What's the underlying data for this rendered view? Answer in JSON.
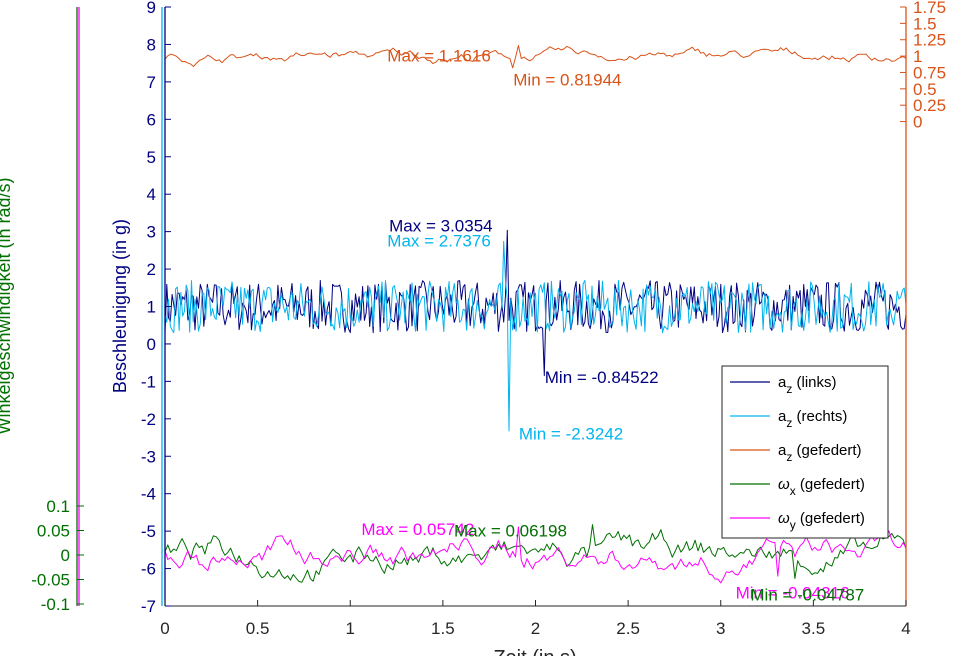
{
  "chart_data": {
    "type": "line",
    "xlabel": "Zeit (in s)",
    "ylabel_left": "Beschleunigung (in g)",
    "ylabel_omega": "Winkelgeschwindigkeit (in rad/s)",
    "xlim": [
      0,
      4
    ],
    "ylim_left": [
      -7,
      9
    ],
    "ylim_right": [
      -7.4,
      1.75
    ],
    "ylim_omega": [
      -0.1,
      0.1
    ],
    "x_ticks": [
      "0",
      "0.5",
      "1",
      "1.5",
      "2",
      "2.5",
      "3",
      "3.5",
      "4"
    ],
    "y_left_ticks": [
      "9",
      "8",
      "7",
      "6",
      "5",
      "4",
      "3",
      "2",
      "1",
      "0",
      "-1",
      "-2",
      "-3",
      "-4",
      "-5",
      "-6",
      "-7"
    ],
    "y_right_ticks": [
      "1.75",
      "1.5",
      "1.25",
      "1",
      "0.75",
      "0.5",
      "0.25",
      "0"
    ],
    "y_omega_ticks": [
      "0.1",
      "0.05",
      "0",
      "-0.05",
      "-0.1"
    ],
    "series": [
      {
        "name": "a_z (links)",
        "base": "a",
        "sub": "z",
        "suffix": " (links)",
        "color": "#000080",
        "axis": "left",
        "keypoints": [
          [
            0,
            1.0
          ],
          [
            1.85,
            3.0354
          ],
          [
            2.05,
            -0.84522
          ],
          [
            4,
            1.0
          ]
        ]
      },
      {
        "name": "a_z (rechts)",
        "base": "a",
        "sub": "z",
        "suffix": " (rechts)",
        "color": "#00b4ee",
        "axis": "left",
        "keypoints": [
          [
            0,
            1.0
          ],
          [
            1.83,
            2.7376
          ],
          [
            1.86,
            -2.3242
          ],
          [
            4,
            1.0
          ]
        ]
      },
      {
        "name": "a_z (gefedert)",
        "base": "a",
        "sub": "z",
        "suffix": " (gefedert)",
        "color": "#d95319",
        "axis": "right",
        "keypoints": [
          [
            0,
            1.0
          ],
          [
            1.9,
            1.1616
          ],
          [
            1.88,
            0.81944
          ],
          [
            4,
            1.0
          ]
        ]
      },
      {
        "name": "ω_x (gefedert)",
        "base": "ω",
        "sub": "x",
        "suffix": " (gefedert)",
        "color": "#007000",
        "axis": "omega",
        "keypoints": [
          [
            0,
            0.0
          ],
          [
            2.3,
            0.06198
          ],
          [
            3.4,
            -0.04787
          ],
          [
            4,
            0.0
          ]
        ]
      },
      {
        "name": "ω_y (gefedert)",
        "base": "ω",
        "sub": "y",
        "suffix": " (gefedert)",
        "color": "#ff00ff",
        "axis": "omega",
        "keypoints": [
          [
            0,
            0.0
          ],
          [
            1.9,
            0.05742
          ],
          [
            3.3,
            -0.04316
          ],
          [
            4,
            0.0
          ]
        ]
      }
    ],
    "annotations": [
      {
        "text": "Max = 3.0354",
        "color": "#000080",
        "x": 1.21,
        "y": 3.0
      },
      {
        "text": "Max = 2.7376",
        "color": "#00b4ee",
        "x": 1.2,
        "y": 2.6
      },
      {
        "text": "Min = -0.84522",
        "color": "#000080",
        "x": 2.05,
        "y": -1.05
      },
      {
        "text": "Min = -2.3242",
        "color": "#00b4ee",
        "x": 1.91,
        "y": -2.55
      },
      {
        "text": "Max = 1.1616",
        "color": "#d95319",
        "x": 1.2,
        "y": 7.55
      },
      {
        "text": "Min = 0.81944",
        "color": "#d95319",
        "x": 1.88,
        "y": 6.9
      },
      {
        "text": "Max = 0.05742",
        "color": "#ff00ff",
        "x": 1.06,
        "y": -5.1
      },
      {
        "text": "Max = 0.06198",
        "color": "#007000",
        "x": 1.56,
        "y": -5.15
      },
      {
        "text": "Min = -0.04316",
        "color": "#ff00ff",
        "x": 3.08,
        "y": -6.8
      },
      {
        "text": "Min = -0.04787",
        "color": "#007000",
        "x": 3.16,
        "y": -6.85
      }
    ],
    "legend_position": "bottom-right",
    "grid": false
  }
}
